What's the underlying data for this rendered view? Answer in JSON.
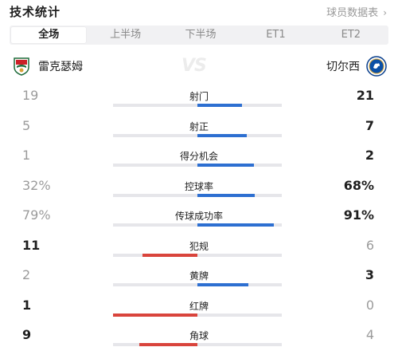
{
  "header": {
    "title": "技术统计",
    "data_link_label": "球员数据表",
    "data_link_icon": "chevron-right-icon"
  },
  "tabs": [
    {
      "label": "全场",
      "active": true
    },
    {
      "label": "上半场",
      "active": false
    },
    {
      "label": "下半场",
      "active": false
    },
    {
      "label": "ET1",
      "active": false
    },
    {
      "label": "ET2",
      "active": false
    }
  ],
  "teams": {
    "home": {
      "name": "雷克瑟姆",
      "badge": "wrexham-badge-icon"
    },
    "away": {
      "name": "切尔西",
      "badge": "chelsea-badge-icon"
    },
    "vs_text": "VS"
  },
  "colors": {
    "home_bar": "#d9443c",
    "away_bar": "#2d6fd1",
    "track": "#e6e6ea"
  },
  "stats": [
    {
      "label": "射门",
      "home": "19",
      "away": "21",
      "home_share": 0.475,
      "away_share": 0.525,
      "leader": "away"
    },
    {
      "label": "射正",
      "home": "5",
      "away": "7",
      "home_share": 0.417,
      "away_share": 0.583,
      "leader": "away"
    },
    {
      "label": "得分机会",
      "home": "1",
      "away": "2",
      "home_share": 0.333,
      "away_share": 0.667,
      "leader": "away"
    },
    {
      "label": "控球率",
      "home": "32%",
      "away": "68%",
      "home_share": 0.32,
      "away_share": 0.68,
      "leader": "away"
    },
    {
      "label": "传球成功率",
      "home": "79%",
      "away": "91%",
      "home_share": 0.79,
      "away_share": 0.91,
      "leader": "away"
    },
    {
      "label": "犯规",
      "home": "11",
      "away": "6",
      "home_share": 0.647,
      "away_share": 0.353,
      "leader": "home"
    },
    {
      "label": "黄牌",
      "home": "2",
      "away": "3",
      "home_share": 0.4,
      "away_share": 0.6,
      "leader": "away"
    },
    {
      "label": "红牌",
      "home": "1",
      "away": "0",
      "home_share": 1.0,
      "away_share": 0.0,
      "leader": "home"
    },
    {
      "label": "角球",
      "home": "9",
      "away": "4",
      "home_share": 0.692,
      "away_share": 0.308,
      "leader": "home"
    }
  ]
}
